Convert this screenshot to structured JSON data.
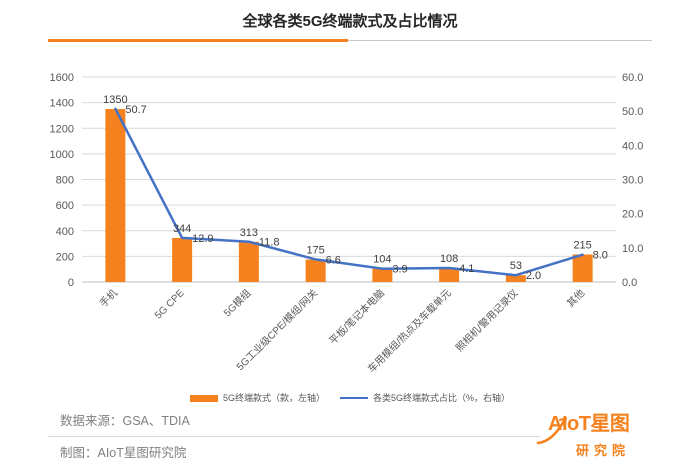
{
  "colors": {
    "accent": "#f5821f"
  },
  "chart_data": {
    "type": "bar",
    "title": "全球各类5G终端款式及占比情况",
    "categories": [
      "手机",
      "5G CPE",
      "5G模组",
      "5G工业级CPE/模组/网关",
      "平板/笔记本电脑",
      "车用模组/热点及车载单元",
      "照相机/警用记录仪",
      "其他"
    ],
    "series": [
      {
        "name": "5G终端款式（款，左轴）",
        "type": "bar",
        "axis": "left",
        "color": "#f5821f",
        "values": [
          1350,
          344,
          313,
          175,
          104,
          108,
          53,
          215
        ]
      },
      {
        "name": "各类5G终端款式占比（%，右轴）",
        "type": "line",
        "axis": "right",
        "color": "#4472c4",
        "values": [
          50.7,
          12.9,
          11.8,
          6.6,
          3.9,
          4.1,
          2.0,
          8.0
        ]
      }
    ],
    "ylim_left": [
      0,
      1600
    ],
    "ylim_right": [
      0,
      60
    ],
    "yticks_left": [
      "0",
      "200",
      "400",
      "600",
      "800",
      "1000",
      "1200",
      "1400",
      "1600"
    ],
    "yticks_right": [
      "0.0",
      "10.0",
      "20.0",
      "30.0",
      "40.0",
      "50.0",
      "60.0"
    ],
    "grid": true,
    "data_labels": true,
    "legend_position": "bottom"
  },
  "footer": {
    "source": "数据来源：GSA、TDIA",
    "credit": "制图：AIoT星图研究院"
  },
  "logo": {
    "name": "AIoT星图",
    "sub": "研究院"
  }
}
